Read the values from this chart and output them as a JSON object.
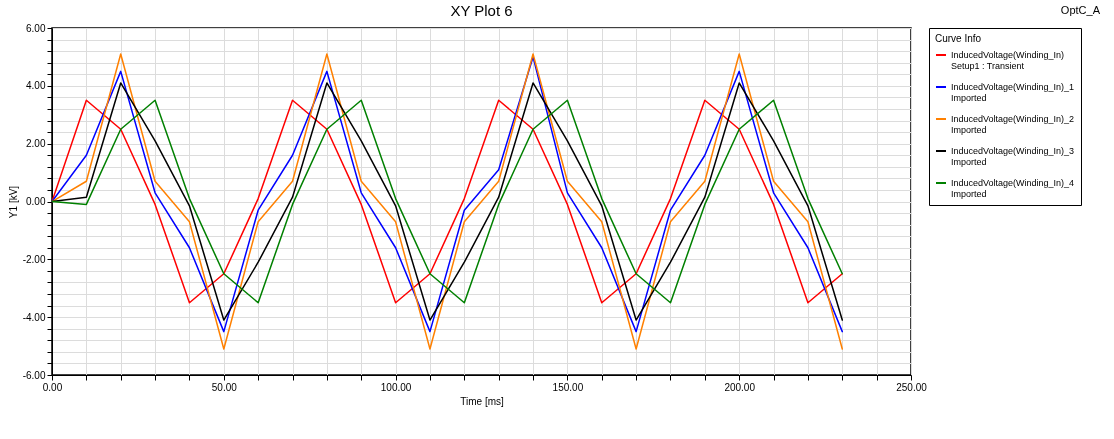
{
  "chart_data": {
    "type": "line",
    "title": "XY Plot 6",
    "xlabel": "Time [ms]",
    "ylabel": "Y1 [kV]",
    "legend_title": "Curve Info",
    "annotations": [
      "OptC_A"
    ],
    "x": [
      0,
      10,
      20,
      30,
      40,
      50,
      60,
      70,
      80,
      90,
      100,
      110,
      120,
      130,
      140,
      150,
      160,
      170,
      180,
      190,
      200,
      210,
      220,
      230
    ],
    "series": [
      {
        "name": "InducedVoltage(Winding_In)\nSetup1 : Transient",
        "color": "#ff0000",
        "values": [
          0,
          3.5,
          2.5,
          -0.1,
          -3.5,
          -2.5,
          0.1,
          3.5,
          2.5,
          -0.1,
          -3.5,
          -2.5,
          0.1,
          3.5,
          2.5,
          -0.1,
          -3.5,
          -2.5,
          0.1,
          3.5,
          2.5,
          -0.1,
          -3.5,
          -2.5
        ]
      },
      {
        "name": "InducedVoltage(Winding_In)_1\nImported",
        "color": "#0000ff",
        "values": [
          0,
          1.6,
          4.5,
          0.3,
          -1.6,
          -4.5,
          -0.3,
          1.6,
          4.5,
          0.3,
          -1.6,
          -4.5,
          -0.3,
          1.1,
          5.0,
          0.3,
          -1.6,
          -4.5,
          -0.3,
          1.6,
          4.5,
          0.3,
          -1.6,
          -4.5
        ]
      },
      {
        "name": "InducedVoltage(Winding_In)_2\nImported",
        "color": "#ff8000",
        "values": [
          0,
          0.7,
          5.1,
          0.7,
          -0.7,
          -5.1,
          -0.7,
          0.7,
          5.1,
          0.7,
          -0.7,
          -5.1,
          -0.7,
          0.7,
          5.1,
          0.7,
          -0.7,
          -5.1,
          -0.7,
          0.7,
          5.1,
          0.7,
          -0.7,
          -5.1
        ]
      },
      {
        "name": "InducedVoltage(Winding_In)_3\nImported",
        "color": "#000000",
        "values": [
          0,
          0.15,
          4.1,
          2.1,
          -0.15,
          -4.1,
          -2.1,
          0.15,
          4.1,
          2.1,
          -0.15,
          -4.1,
          -2.1,
          0.15,
          4.1,
          2.1,
          -0.15,
          -4.1,
          -2.1,
          0.15,
          4.1,
          2.1,
          -0.15,
          -4.1
        ]
      },
      {
        "name": "InducedVoltage(Winding_In)_4\nImported",
        "color": "#008000",
        "values": [
          0,
          -0.1,
          2.5,
          3.5,
          0.1,
          -2.5,
          -3.5,
          -0.1,
          2.5,
          3.5,
          0.1,
          -2.5,
          -3.5,
          -0.1,
          2.5,
          3.5,
          0.1,
          -2.5,
          -3.5,
          -0.1,
          2.5,
          3.5,
          0.1,
          -2.5
        ]
      }
    ],
    "xlim": [
      0,
      250
    ],
    "xticks": [
      {
        "value": 0,
        "label": "0.00"
      },
      {
        "value": 10,
        "label": null
      },
      {
        "value": 20,
        "label": null
      },
      {
        "value": 30,
        "label": null
      },
      {
        "value": 40,
        "label": null
      },
      {
        "value": 50,
        "label": "50.00"
      },
      {
        "value": 60,
        "label": null
      },
      {
        "value": 70,
        "label": null
      },
      {
        "value": 80,
        "label": null
      },
      {
        "value": 90,
        "label": null
      },
      {
        "value": 100,
        "label": "100.00"
      },
      {
        "value": 110,
        "label": null
      },
      {
        "value": 120,
        "label": null
      },
      {
        "value": 130,
        "label": null
      },
      {
        "value": 140,
        "label": null
      },
      {
        "value": 150,
        "label": "150.00"
      },
      {
        "value": 160,
        "label": null
      },
      {
        "value": 170,
        "label": null
      },
      {
        "value": 180,
        "label": null
      },
      {
        "value": 190,
        "label": null
      },
      {
        "value": 200,
        "label": "200.00"
      },
      {
        "value": 210,
        "label": null
      },
      {
        "value": 220,
        "label": null
      },
      {
        "value": 230,
        "label": null
      },
      {
        "value": 240,
        "label": null
      },
      {
        "value": 250,
        "label": "250.00"
      }
    ],
    "ylim": [
      -6,
      6
    ],
    "yticks": [
      {
        "value": -6,
        "label": "-6.00"
      },
      {
        "value": -5.6,
        "label": null
      },
      {
        "value": -5.2,
        "label": null
      },
      {
        "value": -4.8,
        "label": null
      },
      {
        "value": -4.4,
        "label": null
      },
      {
        "value": -4,
        "label": "-4.00"
      },
      {
        "value": -3.6,
        "label": null
      },
      {
        "value": -3.2,
        "label": null
      },
      {
        "value": -2.8,
        "label": null
      },
      {
        "value": -2.4,
        "label": null
      },
      {
        "value": -2,
        "label": "-2.00"
      },
      {
        "value": -1.6,
        "label": null
      },
      {
        "value": -1.2,
        "label": null
      },
      {
        "value": -0.8,
        "label": null
      },
      {
        "value": -0.4,
        "label": null
      },
      {
        "value": 0,
        "label": "0.00"
      },
      {
        "value": 0.4,
        "label": null
      },
      {
        "value": 0.8,
        "label": null
      },
      {
        "value": 1.2,
        "label": null
      },
      {
        "value": 1.6,
        "label": null
      },
      {
        "value": 2,
        "label": "2.00"
      },
      {
        "value": 2.4,
        "label": null
      },
      {
        "value": 2.8,
        "label": null
      },
      {
        "value": 3.2,
        "label": null
      },
      {
        "value": 3.6,
        "label": null
      },
      {
        "value": 4,
        "label": "4.00"
      },
      {
        "value": 4.4,
        "label": null
      },
      {
        "value": 4.8,
        "label": null
      },
      {
        "value": 5.2,
        "label": null
      },
      {
        "value": 5.6,
        "label": null
      },
      {
        "value": 6,
        "label": "6.00"
      }
    ],
    "grid": true,
    "legend": "right",
    "marker": "none",
    "line_style": "solid"
  }
}
